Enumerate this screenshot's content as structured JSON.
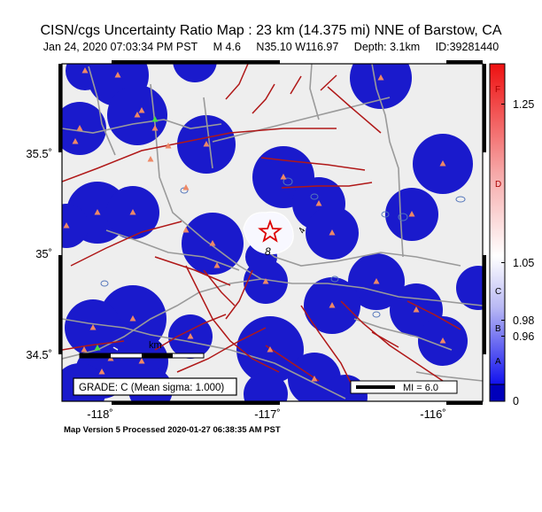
{
  "header": {
    "title": "CISN/cgs Uncertainty Ratio Map : 23 km (14.375 mi) NNE of Barstow, CA",
    "date": "Jan 24, 2020 07:03:34 PM PST",
    "magnitude": "M 4.6",
    "location": "N35.10 W116.97",
    "depth": "Depth: 3.1km",
    "event_id": "ID:39281440"
  },
  "map": {
    "lat_labels": [
      "35.5˚",
      "35˚",
      "34.5˚"
    ],
    "lon_labels": [
      "-118˚",
      "-117˚",
      "-116˚"
    ],
    "grade_text": "GRADE: C (Mean sigma: 1.000)",
    "mi_legend": "MI = 6.0",
    "km_label": "km",
    "contour_labels": [
      "8",
      "4"
    ],
    "colors": {
      "background": "#eeeeee",
      "uncertainty_blob": "#1a1acc",
      "fault": "#b01818",
      "road": "#9a9a9a",
      "station": "#ee8866",
      "epicenter": "#dd0000"
    }
  },
  "colorbar": {
    "letters": [
      "F",
      "D",
      "C",
      "B",
      "A"
    ],
    "values": [
      "1.25",
      "1.05",
      "0.98",
      "0.96",
      "0"
    ],
    "colors": [
      "#ee1111",
      "#ffffff",
      "#1111ee",
      "#0000bb"
    ]
  },
  "footer": {
    "text": "Map Version 5 Processed 2020-01-27 06:38:35 AM PST"
  }
}
